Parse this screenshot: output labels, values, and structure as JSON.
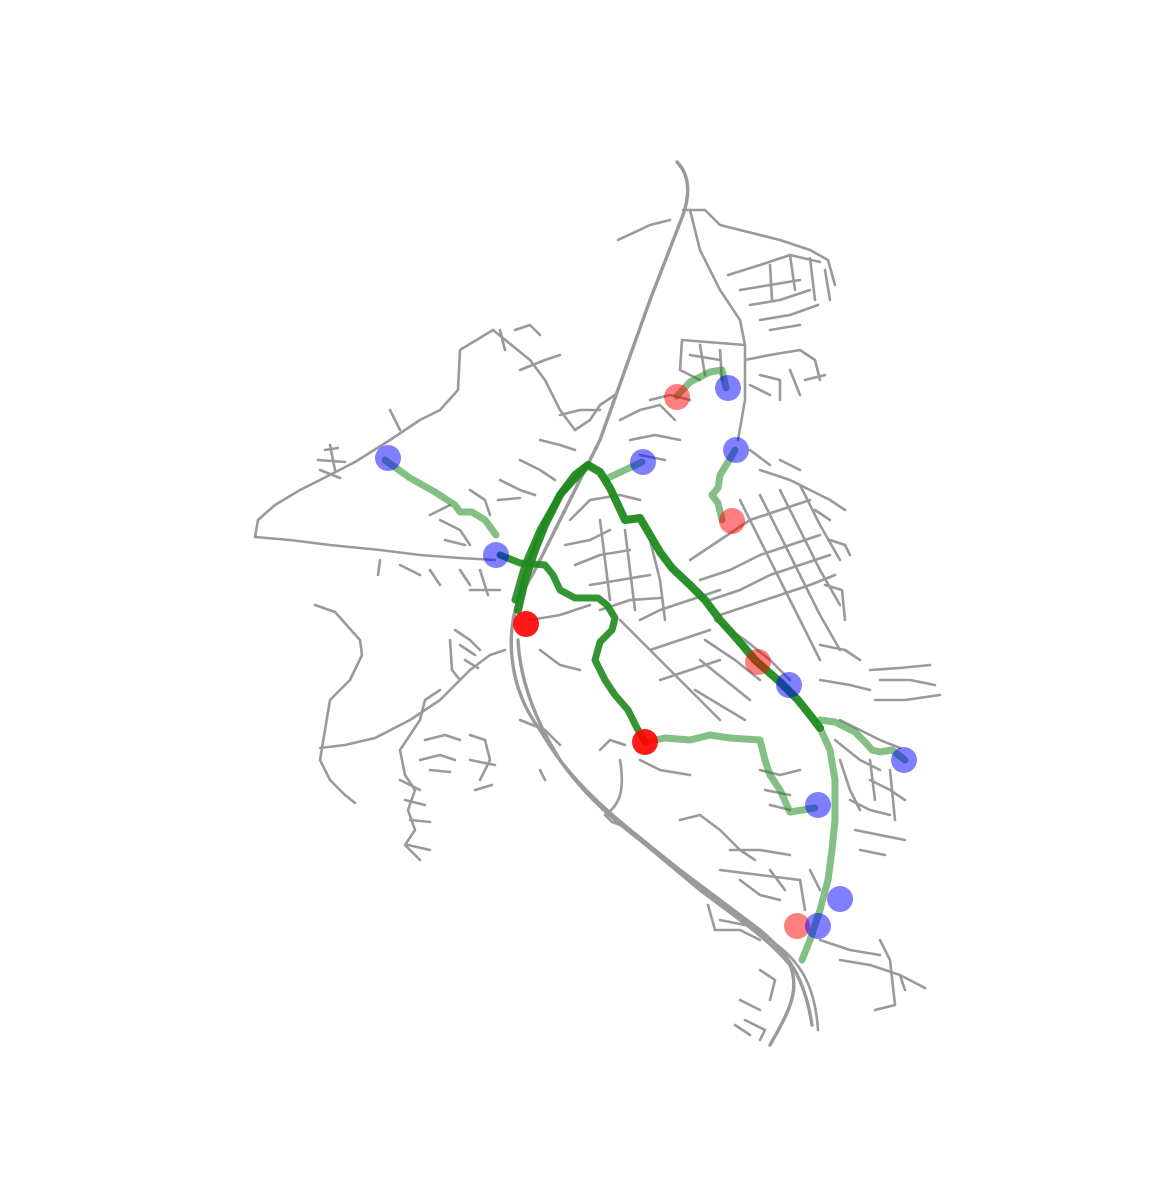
{
  "colors": {
    "background": "#ffffff",
    "road": "#9a9a9a",
    "route": "#1f8a1f",
    "origin_node": "#ff0000",
    "destination_node": "#0000ff"
  },
  "routes": [
    {
      "id": "r1",
      "opacity": 0.95,
      "width": 8
    },
    {
      "id": "r2",
      "opacity": 0.9,
      "width": 7
    },
    {
      "id": "r3",
      "opacity": 0.9,
      "width": 7
    },
    {
      "id": "r4",
      "opacity": 0.55,
      "width": 7
    },
    {
      "id": "r5",
      "opacity": 0.55,
      "width": 7
    },
    {
      "id": "r6",
      "opacity": 0.55,
      "width": 7
    },
    {
      "id": "r7",
      "opacity": 0.55,
      "width": 7
    },
    {
      "id": "r8",
      "opacity": 0.55,
      "width": 7
    },
    {
      "id": "r9",
      "opacity": 0.55,
      "width": 7
    },
    {
      "id": "r10",
      "opacity": 0.55,
      "width": 7
    }
  ],
  "nodes": [
    {
      "id": "origin-1",
      "kind": "origin",
      "opacity": 0.9
    },
    {
      "id": "origin-2",
      "kind": "origin",
      "opacity": 0.9
    },
    {
      "id": "origin-3",
      "kind": "origin",
      "opacity": 0.5
    },
    {
      "id": "origin-4",
      "kind": "origin",
      "opacity": 0.5
    },
    {
      "id": "origin-5",
      "kind": "origin",
      "opacity": 0.5
    },
    {
      "id": "origin-6",
      "kind": "origin",
      "opacity": 0.5
    },
    {
      "id": "destination-1",
      "kind": "destination",
      "opacity": 0.5
    },
    {
      "id": "destination-2",
      "kind": "destination",
      "opacity": 0.5
    },
    {
      "id": "destination-3",
      "kind": "destination",
      "opacity": 0.5
    },
    {
      "id": "destination-4",
      "kind": "destination",
      "opacity": 0.5
    },
    {
      "id": "destination-5",
      "kind": "destination",
      "opacity": 0.5
    },
    {
      "id": "destination-6",
      "kind": "destination",
      "opacity": 0.5
    },
    {
      "id": "destination-7",
      "kind": "destination",
      "opacity": 0.5
    },
    {
      "id": "destination-8",
      "kind": "destination",
      "opacity": 0.5
    },
    {
      "id": "destination-9",
      "kind": "destination",
      "opacity": 0.5
    },
    {
      "id": "destination-10",
      "kind": "destination",
      "opacity": 0.5
    }
  ]
}
